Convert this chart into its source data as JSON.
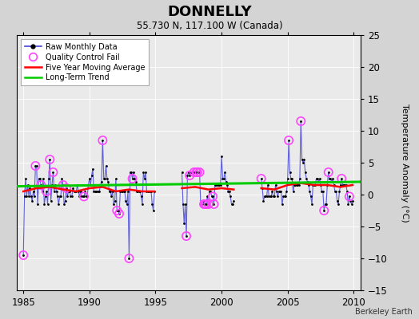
{
  "title": "DONNELLY",
  "subtitle": "55.730 N, 117.100 W (Canada)",
  "ylabel": "Temperature Anomaly (°C)",
  "credit": "Berkeley Earth",
  "xlim": [
    1984.5,
    2010.5
  ],
  "ylim": [
    -15,
    25
  ],
  "yticks": [
    -15,
    -10,
    -5,
    0,
    5,
    10,
    15,
    20,
    25
  ],
  "xticks": [
    1985,
    1990,
    1995,
    2000,
    2005,
    2010
  ],
  "bg_color": "#d4d4d4",
  "plot_bg_color": "#eaeaea",
  "raw_line_color": "#4444dd",
  "raw_dot_color": "#000000",
  "qc_fail_color": "#ff44ff",
  "moving_avg_color": "#ff0000",
  "trend_color": "#00cc00",
  "raw_data": [
    [
      1985.0,
      -9.5
    ],
    [
      1985.083,
      -0.2
    ],
    [
      1985.167,
      2.5
    ],
    [
      1985.25,
      -0.3
    ],
    [
      1985.333,
      1.5
    ],
    [
      1985.417,
      -0.3
    ],
    [
      1985.5,
      1.0
    ],
    [
      1985.583,
      -0.3
    ],
    [
      1985.667,
      -1.0
    ],
    [
      1985.75,
      0.5
    ],
    [
      1985.833,
      -0.3
    ],
    [
      1985.917,
      4.5
    ],
    [
      1986.0,
      4.5
    ],
    [
      1986.083,
      -1.5
    ],
    [
      1986.167,
      2.5
    ],
    [
      1986.25,
      2.5
    ],
    [
      1986.333,
      1.5
    ],
    [
      1986.417,
      0.5
    ],
    [
      1986.5,
      2.5
    ],
    [
      1986.583,
      -1.5
    ],
    [
      1986.667,
      -0.3
    ],
    [
      1986.75,
      0.5
    ],
    [
      1986.833,
      -1.5
    ],
    [
      1986.917,
      2.5
    ],
    [
      1987.0,
      5.5
    ],
    [
      1987.083,
      -1.0
    ],
    [
      1987.167,
      1.5
    ],
    [
      1987.25,
      3.5
    ],
    [
      1987.333,
      0.5
    ],
    [
      1987.417,
      1.5
    ],
    [
      1987.5,
      0.5
    ],
    [
      1987.583,
      -0.3
    ],
    [
      1987.667,
      -1.5
    ],
    [
      1987.75,
      -0.3
    ],
    [
      1987.833,
      -0.3
    ],
    [
      1987.917,
      2.5
    ],
    [
      1988.0,
      1.5
    ],
    [
      1988.083,
      -1.5
    ],
    [
      1988.167,
      -1.0
    ],
    [
      1988.25,
      1.0
    ],
    [
      1988.333,
      -0.3
    ],
    [
      1988.417,
      0.5
    ],
    [
      1988.5,
      0.5
    ],
    [
      1988.583,
      -0.3
    ],
    [
      1988.667,
      -0.3
    ],
    [
      1988.75,
      1.0
    ],
    [
      1988.833,
      0.5
    ],
    [
      1988.917,
      0.5
    ],
    [
      1989.0,
      0.5
    ],
    [
      1989.083,
      1.5
    ],
    [
      1989.167,
      0.5
    ],
    [
      1989.25,
      -0.3
    ],
    [
      1989.333,
      0.5
    ],
    [
      1989.417,
      -0.3
    ],
    [
      1989.5,
      -0.3
    ],
    [
      1989.583,
      -0.3
    ],
    [
      1989.667,
      0.5
    ],
    [
      1989.75,
      -0.3
    ],
    [
      1989.833,
      -0.3
    ],
    [
      1989.917,
      1.5
    ],
    [
      1990.0,
      2.5
    ],
    [
      1990.083,
      1.5
    ],
    [
      1990.167,
      3.0
    ],
    [
      1990.25,
      4.0
    ],
    [
      1990.333,
      0.5
    ],
    [
      1990.417,
      0.5
    ],
    [
      1990.5,
      0.5
    ],
    [
      1990.583,
      0.5
    ],
    [
      1990.667,
      0.5
    ],
    [
      1990.75,
      0.5
    ],
    [
      1990.833,
      1.5
    ],
    [
      1990.917,
      2.0
    ],
    [
      1991.0,
      8.5
    ],
    [
      1991.083,
      2.5
    ],
    [
      1991.167,
      2.5
    ],
    [
      1991.25,
      4.5
    ],
    [
      1991.333,
      2.5
    ],
    [
      1991.417,
      2.0
    ],
    [
      1991.5,
      0.5
    ],
    [
      1991.583,
      0.5
    ],
    [
      1991.667,
      -0.3
    ],
    [
      1991.75,
      0.5
    ],
    [
      1991.833,
      -1.5
    ],
    [
      1991.917,
      -1.0
    ],
    [
      1992.0,
      2.5
    ],
    [
      1992.083,
      -2.5
    ],
    [
      1992.167,
      -2.5
    ],
    [
      1992.25,
      -3.0
    ],
    [
      1992.333,
      0.5
    ],
    [
      1992.417,
      0.5
    ],
    [
      1992.5,
      0.5
    ],
    [
      1992.583,
      0.5
    ],
    [
      1992.667,
      0.5
    ],
    [
      1992.75,
      -1.0
    ],
    [
      1992.833,
      -1.5
    ],
    [
      1992.917,
      0.5
    ],
    [
      1993.0,
      -10.0
    ],
    [
      1993.083,
      3.5
    ],
    [
      1993.167,
      3.5
    ],
    [
      1993.25,
      2.5
    ],
    [
      1993.333,
      3.5
    ],
    [
      1993.417,
      2.5
    ],
    [
      1993.5,
      2.0
    ],
    [
      1993.583,
      0.5
    ],
    [
      1993.667,
      0.5
    ],
    [
      1993.75,
      0.5
    ],
    [
      1993.833,
      0.5
    ],
    [
      1993.917,
      -0.3
    ],
    [
      1994.0,
      -1.5
    ],
    [
      1994.083,
      3.5
    ],
    [
      1994.167,
      2.5
    ],
    [
      1994.25,
      3.5
    ],
    [
      1994.333,
      0.5
    ],
    [
      1994.417,
      0.5
    ],
    [
      1994.5,
      0.5
    ],
    [
      1994.583,
      0.5
    ],
    [
      1994.667,
      0.5
    ],
    [
      1994.75,
      -1.5
    ],
    [
      1994.833,
      -2.5
    ],
    [
      1994.917,
      0.5
    ],
    [
      1997.0,
      3.5
    ],
    [
      1997.083,
      -1.5
    ],
    [
      1997.167,
      -4.5
    ],
    [
      1997.25,
      -1.5
    ],
    [
      1997.333,
      -6.5
    ],
    [
      1997.417,
      3.0
    ],
    [
      1997.5,
      3.5
    ],
    [
      1997.583,
      3.0
    ],
    [
      1997.667,
      3.5
    ],
    [
      1997.75,
      3.5
    ],
    [
      1997.833,
      3.5
    ],
    [
      1997.917,
      3.5
    ],
    [
      1998.0,
      3.5
    ],
    [
      1998.083,
      3.5
    ],
    [
      1998.167,
      3.5
    ],
    [
      1998.25,
      3.5
    ],
    [
      1998.333,
      3.5
    ],
    [
      1998.417,
      -1.5
    ],
    [
      1998.5,
      -1.5
    ],
    [
      1998.583,
      -1.0
    ],
    [
      1998.667,
      -1.5
    ],
    [
      1998.75,
      -1.5
    ],
    [
      1998.833,
      -1.5
    ],
    [
      1998.917,
      -0.3
    ],
    [
      1999.0,
      -1.5
    ],
    [
      1999.083,
      0.5
    ],
    [
      1999.167,
      0.5
    ],
    [
      1999.25,
      -0.3
    ],
    [
      1999.333,
      -0.3
    ],
    [
      1999.417,
      -1.5
    ],
    [
      1999.5,
      1.5
    ],
    [
      1999.583,
      1.5
    ],
    [
      1999.667,
      1.5
    ],
    [
      1999.75,
      1.5
    ],
    [
      1999.833,
      1.5
    ],
    [
      1999.917,
      1.5
    ],
    [
      2000.0,
      6.0
    ],
    [
      2000.083,
      2.5
    ],
    [
      2000.167,
      2.5
    ],
    [
      2000.25,
      3.5
    ],
    [
      2000.333,
      2.0
    ],
    [
      2000.417,
      1.5
    ],
    [
      2000.5,
      0.5
    ],
    [
      2000.583,
      0.5
    ],
    [
      2000.667,
      -0.3
    ],
    [
      2000.75,
      -1.5
    ],
    [
      2000.833,
      -1.5
    ],
    [
      2000.917,
      -1.0
    ],
    [
      2003.0,
      2.5
    ],
    [
      2003.083,
      1.0
    ],
    [
      2003.167,
      -1.0
    ],
    [
      2003.25,
      -0.3
    ],
    [
      2003.333,
      -0.3
    ],
    [
      2003.417,
      -0.3
    ],
    [
      2003.5,
      1.5
    ],
    [
      2003.583,
      -0.3
    ],
    [
      2003.667,
      -0.3
    ],
    [
      2003.75,
      -0.3
    ],
    [
      2003.833,
      0.5
    ],
    [
      2003.917,
      -0.3
    ],
    [
      2004.0,
      -0.3
    ],
    [
      2004.083,
      1.5
    ],
    [
      2004.167,
      0.5
    ],
    [
      2004.25,
      -0.3
    ],
    [
      2004.333,
      0.5
    ],
    [
      2004.417,
      0.5
    ],
    [
      2004.5,
      0.5
    ],
    [
      2004.583,
      -1.5
    ],
    [
      2004.667,
      -0.3
    ],
    [
      2004.75,
      -0.3
    ],
    [
      2004.833,
      -0.3
    ],
    [
      2004.917,
      0.5
    ],
    [
      2005.0,
      2.5
    ],
    [
      2005.083,
      8.5
    ],
    [
      2005.167,
      3.5
    ],
    [
      2005.25,
      2.5
    ],
    [
      2005.333,
      2.5
    ],
    [
      2005.417,
      0.5
    ],
    [
      2005.5,
      1.5
    ],
    [
      2005.583,
      1.5
    ],
    [
      2005.667,
      1.5
    ],
    [
      2005.75,
      1.5
    ],
    [
      2005.833,
      1.5
    ],
    [
      2005.917,
      2.5
    ],
    [
      2006.0,
      11.5
    ],
    [
      2006.083,
      5.5
    ],
    [
      2006.167,
      5.0
    ],
    [
      2006.25,
      5.5
    ],
    [
      2006.333,
      3.5
    ],
    [
      2006.417,
      2.5
    ],
    [
      2006.5,
      2.0
    ],
    [
      2006.583,
      1.5
    ],
    [
      2006.667,
      0.5
    ],
    [
      2006.75,
      -0.3
    ],
    [
      2006.833,
      -1.5
    ],
    [
      2006.917,
      1.5
    ],
    [
      2007.0,
      1.5
    ],
    [
      2007.083,
      1.5
    ],
    [
      2007.167,
      2.5
    ],
    [
      2007.25,
      2.5
    ],
    [
      2007.333,
      2.0
    ],
    [
      2007.417,
      2.5
    ],
    [
      2007.5,
      1.5
    ],
    [
      2007.583,
      0.5
    ],
    [
      2007.667,
      0.5
    ],
    [
      2007.75,
      -2.5
    ],
    [
      2007.833,
      -1.5
    ],
    [
      2007.917,
      -1.5
    ],
    [
      2008.0,
      1.5
    ],
    [
      2008.083,
      3.5
    ],
    [
      2008.167,
      2.5
    ],
    [
      2008.25,
      2.5
    ],
    [
      2008.333,
      2.0
    ],
    [
      2008.417,
      2.5
    ],
    [
      2008.5,
      1.5
    ],
    [
      2008.583,
      0.5
    ],
    [
      2008.667,
      0.5
    ],
    [
      2008.75,
      -1.0
    ],
    [
      2008.833,
      -1.5
    ],
    [
      2008.917,
      0.5
    ],
    [
      2009.0,
      1.5
    ],
    [
      2009.083,
      2.5
    ],
    [
      2009.167,
      1.5
    ],
    [
      2009.25,
      1.5
    ],
    [
      2009.333,
      1.5
    ],
    [
      2009.417,
      1.5
    ],
    [
      2009.5,
      0.5
    ],
    [
      2009.583,
      -1.5
    ],
    [
      2009.667,
      -0.3
    ],
    [
      2009.75,
      -1.0
    ],
    [
      2009.833,
      -1.5
    ],
    [
      2009.917,
      -1.0
    ]
  ],
  "data_segments": [
    [
      1985.0,
      1994.917
    ],
    [
      1997.0,
      2000.917
    ],
    [
      2003.0,
      2009.917
    ]
  ],
  "qc_fail_points": [
    [
      1985.0,
      -9.5
    ],
    [
      1985.917,
      4.5
    ],
    [
      1986.333,
      1.5
    ],
    [
      1986.75,
      0.5
    ],
    [
      1987.0,
      5.5
    ],
    [
      1987.25,
      3.5
    ],
    [
      1988.0,
      1.5
    ],
    [
      1988.25,
      1.0
    ],
    [
      1989.583,
      -0.3
    ],
    [
      1991.0,
      8.5
    ],
    [
      1992.083,
      -2.5
    ],
    [
      1992.25,
      -3.0
    ],
    [
      1993.0,
      -10.0
    ],
    [
      1993.25,
      2.5
    ],
    [
      1997.333,
      -6.5
    ],
    [
      1997.583,
      3.0
    ],
    [
      1997.917,
      3.5
    ],
    [
      1998.083,
      3.5
    ],
    [
      1998.167,
      3.5
    ],
    [
      1998.333,
      3.5
    ],
    [
      1998.667,
      -1.5
    ],
    [
      1998.75,
      -1.5
    ],
    [
      1998.833,
      -1.5
    ],
    [
      1999.0,
      -1.5
    ],
    [
      1999.333,
      -0.3
    ],
    [
      1999.417,
      -1.5
    ],
    [
      2003.0,
      2.5
    ],
    [
      2005.083,
      8.5
    ],
    [
      2006.0,
      11.5
    ],
    [
      2007.75,
      -2.5
    ],
    [
      2008.083,
      3.5
    ],
    [
      2009.083,
      2.5
    ],
    [
      2009.667,
      -0.3
    ]
  ],
  "trend_x": [
    1984.5,
    2010.5
  ],
  "trend_y": [
    1.3,
    2.0
  ],
  "moving_avg_segments": [
    {
      "x": [
        1985.0,
        1986.0,
        1987.0,
        1988.0,
        1989.0,
        1990.0,
        1991.0,
        1992.0,
        1993.0,
        1994.0,
        1994.917
      ],
      "y": [
        0.5,
        1.0,
        1.2,
        0.8,
        0.5,
        1.0,
        1.2,
        0.5,
        0.8,
        0.5,
        0.5
      ]
    },
    {
      "x": [
        1997.0,
        1998.0,
        1999.0,
        2000.0,
        2000.917
      ],
      "y": [
        1.0,
        1.2,
        0.8,
        1.0,
        0.8
      ]
    },
    {
      "x": [
        2003.0,
        2004.0,
        2005.0,
        2006.0,
        2007.0,
        2008.0,
        2009.0,
        2009.917
      ],
      "y": [
        1.0,
        0.8,
        1.5,
        1.8,
        1.5,
        1.5,
        1.2,
        1.5
      ]
    }
  ]
}
